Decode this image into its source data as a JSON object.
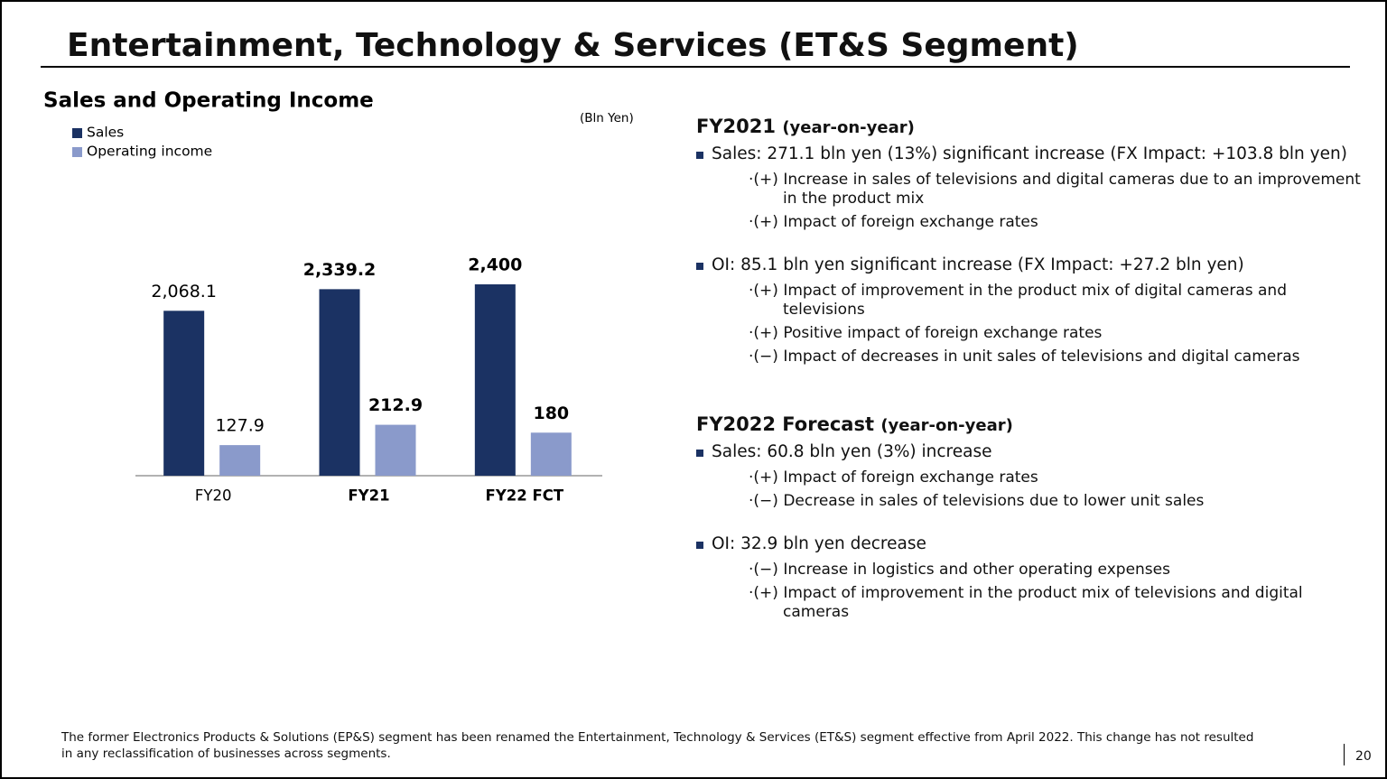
{
  "title": "Entertainment, Technology & Services (ET&S Segment)",
  "chart_data": {
    "type": "bar",
    "subtitle": "Sales and Operating Income",
    "unit_label": "(Bln Yen)",
    "categories": [
      "FY20",
      "FY21",
      "FY22 FCT"
    ],
    "series": [
      {
        "name": "Sales",
        "color": "#1b3263",
        "values": [
          2068.1,
          2339.2,
          2400
        ],
        "value_labels": [
          "2,068.1",
          "2,339.2",
          "2,400"
        ]
      },
      {
        "name": "Operating income",
        "color": "#8a9acb",
        "axis": "y2",
        "values": [
          127.9,
          212.9,
          180
        ]
      }
    ],
    "ylim": [
      0,
      3000
    ],
    "y2lim": [
      0,
      1000
    ],
    "legend": "top-left"
  },
  "sections": [
    {
      "heading": "FY2021",
      "heading_note": "(year-on-year)",
      "items": [
        {
          "text": "Sales: 271.1 bln yen (13%) significant increase (FX Impact: +103.8 bln yen)",
          "points": [
            "·(+) Increase in sales of televisions and digital cameras due to an improvement in the product mix",
            "·(+) Impact of foreign exchange rates"
          ]
        },
        {
          "text": "OI: 85.1 bln yen significant increase (FX Impact: +27.2 bln yen)",
          "points": [
            "·(+) Impact of improvement in the product mix of digital cameras and televisions",
            "·(+) Positive impact of foreign exchange rates",
            "·(−) Impact of decreases in unit sales of televisions and digital cameras"
          ]
        }
      ]
    },
    {
      "heading": "FY2022 Forecast",
      "heading_note": "(year-on-year)",
      "items": [
        {
          "text": "Sales: 60.8 bln yen (3%) increase",
          "points": [
            "·(+) Impact of foreign exchange rates",
            "·(−) Decrease in sales of televisions due to lower unit sales"
          ]
        },
        {
          "text": "OI: 32.9 bln yen decrease",
          "points": [
            "·(−) Increase in logistics and other operating expenses",
            "·(+) Impact of improvement in the product mix of televisions and digital cameras"
          ]
        }
      ]
    }
  ],
  "footnote": "The former Electronics Products & Solutions (EP&S) segment has been renamed the Entertainment, Technology & Services (ET&S) segment effective from April 2022. This change has not resulted in any reclassification of businesses across segments.",
  "page_number": 20
}
